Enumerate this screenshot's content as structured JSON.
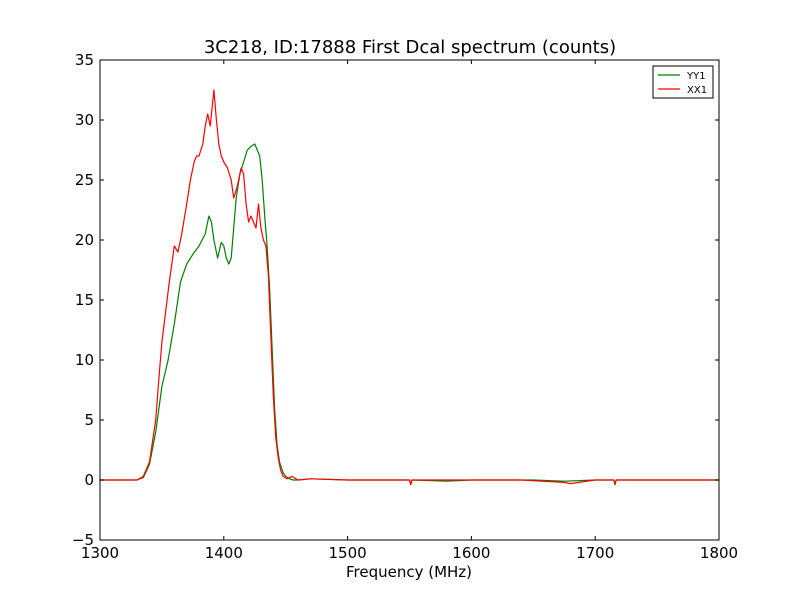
{
  "chart_data": {
    "type": "line",
    "title": "3C218, ID:17888 First Dcal spectrum (counts)",
    "xlabel": "Frequency (MHz)",
    "ylabel": "",
    "xlim": [
      1300,
      1800
    ],
    "ylim": [
      -5,
      35
    ],
    "x_ticks": [
      1300,
      1400,
      1500,
      1600,
      1700,
      1800
    ],
    "y_ticks": [
      -5,
      0,
      5,
      10,
      15,
      20,
      25,
      30,
      35
    ],
    "x_tick_labels": [
      "1300",
      "1400",
      "1500",
      "1600",
      "1700",
      "1800"
    ],
    "y_tick_labels": [
      "−5",
      "0",
      "5",
      "10",
      "15",
      "20",
      "25",
      "30",
      "35"
    ],
    "grid": false,
    "legend_position": "top-right",
    "series": [
      {
        "name": "YY1",
        "color": "#008000",
        "x": [
          1300,
          1330,
          1335,
          1340,
          1345,
          1350,
          1355,
          1360,
          1365,
          1370,
          1375,
          1380,
          1385,
          1388,
          1390,
          1392,
          1395,
          1398,
          1400,
          1402,
          1404,
          1406,
          1408,
          1410,
          1413,
          1416,
          1419,
          1422,
          1425,
          1427,
          1429,
          1431,
          1433,
          1435,
          1437,
          1439,
          1441,
          1443,
          1445,
          1448,
          1450,
          1453,
          1456,
          1460,
          1470,
          1500,
          1550,
          1551,
          1552,
          1580,
          1600,
          1650,
          1675,
          1700,
          1715,
          1716,
          1717,
          1750,
          1800
        ],
        "y": [
          0,
          0,
          0.2,
          1.3,
          4,
          7.8,
          10,
          13,
          16.5,
          18,
          18.8,
          19.5,
          20.5,
          22,
          21.5,
          20,
          18.5,
          19.8,
          19.5,
          18.5,
          18,
          18.5,
          21,
          23.5,
          25.5,
          26.5,
          27.5,
          27.8,
          28,
          27.5,
          27,
          25,
          22,
          19.5,
          16,
          11,
          6,
          3,
          1.5,
          0.6,
          0.3,
          0.1,
          0,
          0,
          0.1,
          0,
          0,
          -0.3,
          0,
          -0.1,
          0,
          0,
          -0.1,
          0,
          0,
          -0.4,
          0,
          0,
          0
        ]
      },
      {
        "name": "XX1",
        "color": "#ff0000",
        "x": [
          1300,
          1330,
          1335,
          1340,
          1345,
          1348,
          1350,
          1353,
          1356,
          1360,
          1363,
          1366,
          1370,
          1373,
          1376,
          1378,
          1380,
          1383,
          1385,
          1387,
          1389,
          1391,
          1392,
          1394,
          1396,
          1398,
          1400,
          1403,
          1406,
          1408,
          1411,
          1414,
          1416,
          1418,
          1420,
          1422,
          1424,
          1426,
          1428,
          1430,
          1432,
          1434,
          1436,
          1438,
          1440,
          1442,
          1444,
          1446,
          1448,
          1451,
          1455,
          1460,
          1470,
          1500,
          1550,
          1551,
          1552,
          1580,
          1600,
          1640,
          1675,
          1680,
          1700,
          1715,
          1716,
          1717,
          1750,
          1800
        ],
        "y": [
          0,
          0,
          0.3,
          1.5,
          5,
          9,
          11.5,
          14,
          16.5,
          19.5,
          19,
          20.5,
          23,
          25,
          26.5,
          27,
          27,
          28,
          29.5,
          30.5,
          29.5,
          31.5,
          32.5,
          30,
          28,
          27,
          26.5,
          26,
          25,
          23.5,
          24.5,
          26,
          25.5,
          23,
          21.5,
          22,
          21.5,
          21,
          23,
          21,
          20,
          19.5,
          17,
          12,
          7,
          3.5,
          1.8,
          0.8,
          0.3,
          0.1,
          0.3,
          0,
          0.1,
          0,
          0,
          -0.4,
          0,
          0,
          0,
          0,
          -0.2,
          -0.3,
          0,
          0,
          -0.3,
          0,
          0,
          0
        ]
      }
    ]
  }
}
